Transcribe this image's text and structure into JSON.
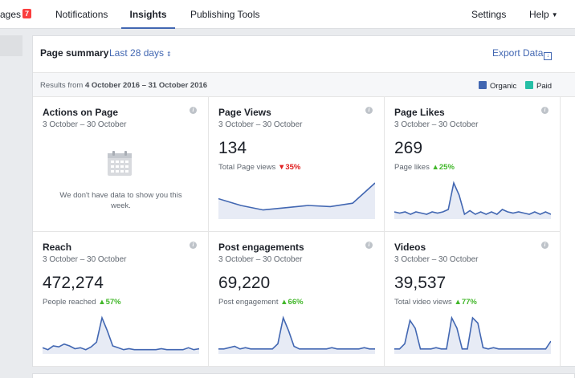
{
  "nav": {
    "pages_label": "ages",
    "pages_badge": "7",
    "notifications": "Notifications",
    "insights": "Insights",
    "publishing_tools": "Publishing Tools",
    "settings": "Settings",
    "help": "Help"
  },
  "summary": {
    "title": "Page summary",
    "range": "Last 28 days",
    "export": "Export Data",
    "results_prefix": "Results from ",
    "results_range": "4 October 2016 – 31 October 2016",
    "legend": [
      {
        "label": "Organic",
        "color": "#4267b2"
      },
      {
        "label": "Paid",
        "color": "#26bfa6"
      }
    ]
  },
  "cards": [
    {
      "title": "Actions on Page",
      "range": "3 October – 30 October",
      "empty_text": "We don't have data to show you this week."
    },
    {
      "title": "Page Views",
      "range": "3 October – 30 October",
      "value": "134",
      "label": "Total Page views",
      "trend": "35%",
      "trend_dir": "down",
      "series": [
        8,
        5,
        3,
        4,
        5,
        4.5,
        6,
        15
      ]
    },
    {
      "title": "Page Likes",
      "range": "3 October – 30 October",
      "value": "269",
      "label": "Page likes",
      "trend": "25%",
      "trend_dir": "up",
      "series": [
        2,
        1.5,
        2,
        1,
        2,
        1.5,
        1,
        2,
        1.5,
        2,
        3,
        14,
        9,
        1,
        2.5,
        1,
        2,
        1,
        2,
        1,
        3,
        2,
        1.5,
        2,
        1.5,
        1,
        2,
        1,
        2,
        1
      ]
    },
    {
      "title": "Reach",
      "range": "3 October – 30 October",
      "value": "472,274",
      "label": "People reached",
      "trend": "57%",
      "trend_dir": "up",
      "series": [
        2,
        1,
        3,
        2.5,
        4,
        3,
        1.5,
        2,
        1,
        2.5,
        5,
        18,
        11,
        3,
        2,
        1,
        1.5,
        1,
        1,
        1,
        1,
        1,
        1.5,
        1,
        1,
        1,
        1,
        2,
        1,
        1.5
      ]
    },
    {
      "title": "Post engagements",
      "range": "3 October – 30 October",
      "value": "69,220",
      "label": "Post engagement",
      "trend": "66%",
      "trend_dir": "up",
      "series": [
        1,
        1,
        1.5,
        2,
        1,
        1.5,
        1,
        1,
        1,
        1,
        1,
        3,
        13,
        8,
        2,
        1,
        1,
        1,
        1,
        1,
        1,
        1.5,
        1,
        1,
        1,
        1,
        1,
        1.5,
        1,
        1
      ]
    },
    {
      "title": "Videos",
      "range": "3 October – 30 October",
      "value": "39,537",
      "label": "Total video views",
      "trend": "77%",
      "trend_dir": "up",
      "series": [
        1,
        1,
        3,
        12,
        9,
        1,
        1,
        1,
        1.5,
        1,
        1,
        13,
        9,
        1,
        1,
        13,
        11,
        1.5,
        1,
        1.5,
        1,
        1,
        1,
        1,
        1,
        1,
        1,
        1,
        1,
        1,
        4
      ]
    }
  ]
}
